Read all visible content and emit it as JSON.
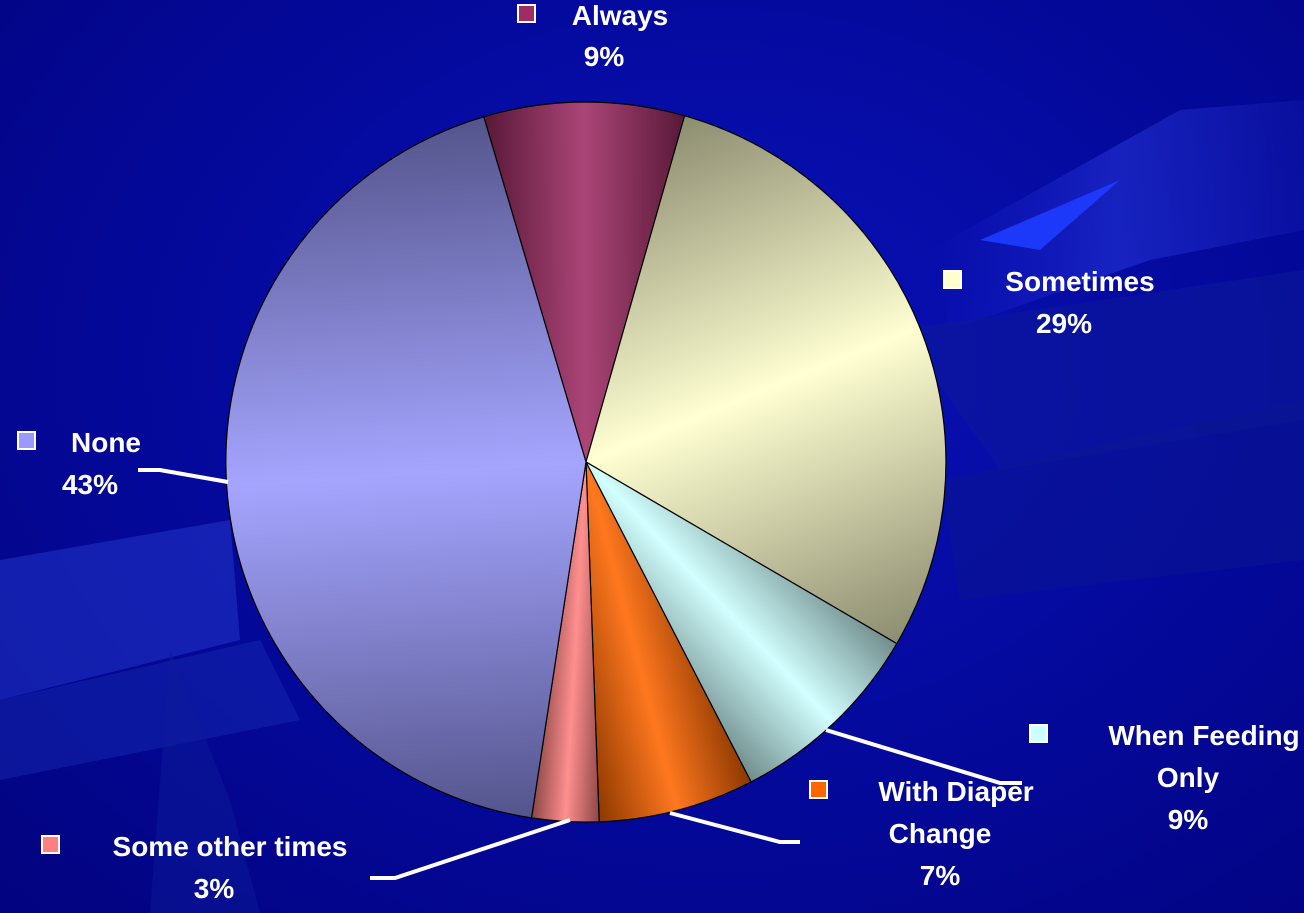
{
  "chart_data": {
    "type": "pie",
    "title": "",
    "slices": [
      {
        "label": "Always",
        "value": 9,
        "color": "#a02c64",
        "display": "9%"
      },
      {
        "label": "Sometimes",
        "value": 29,
        "color": "#ffffcc",
        "display": "29%"
      },
      {
        "label": "When Feeding Only",
        "value": 9,
        "color": "#ccffff",
        "display": "9%"
      },
      {
        "label": "With Diaper Change",
        "value": 7,
        "color": "#ff6600",
        "display": "7%"
      },
      {
        "label": "Some other times",
        "value": 3,
        "color": "#ff8080",
        "display": "3%"
      },
      {
        "label": "None",
        "value": 43,
        "color": "#9999ff",
        "display": "43%"
      }
    ],
    "legend": "inline-labels"
  }
}
